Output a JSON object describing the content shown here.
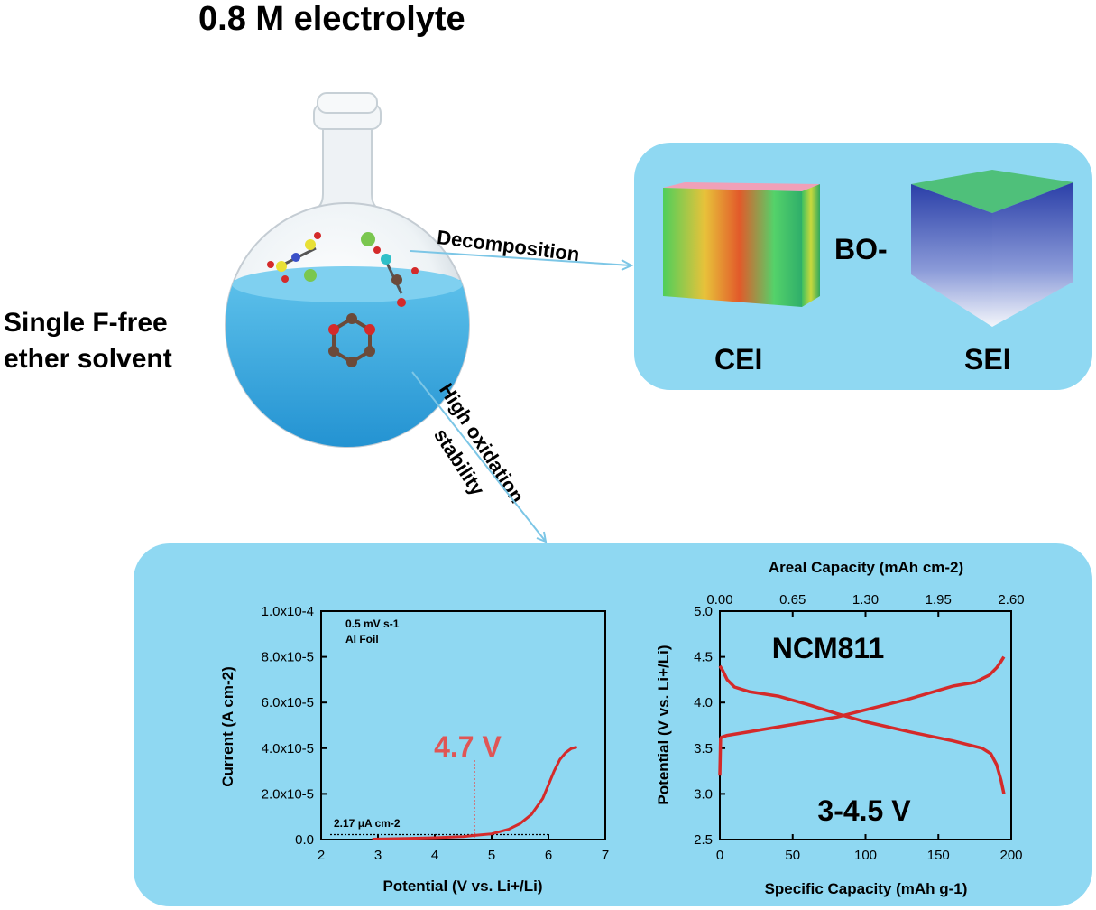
{
  "header": {
    "title": "0.8 M electrolyte"
  },
  "solvent_label": {
    "line1": "Single F-free",
    "line2": "ether solvent"
  },
  "arrows": {
    "decomposition": "Decomposition",
    "oxidation_line1": "High oxidation",
    "oxidation_line2": "stability"
  },
  "interphase": {
    "bo_label": "BO-",
    "cei_label": "CEI",
    "sei_label": "SEI"
  },
  "colors": {
    "panel": "#8fd8f2",
    "curve": "#d42a2a",
    "highlight": "#e05555",
    "arrow": "#7cc6e6"
  },
  "chart_data": [
    {
      "type": "line",
      "xlabel": "Potential (V vs. Li+/Li)",
      "ylabel": "Current (A cm-2)",
      "xlim": [
        2,
        7
      ],
      "ylim": [
        0,
        0.0001
      ],
      "xticks": [
        "2",
        "3",
        "4",
        "5",
        "6",
        "7"
      ],
      "yticks": [
        "0.0",
        "2.0x10-5",
        "4.0x10-5",
        "6.0x10-5",
        "8.0x10-5",
        "1.0x10-4"
      ],
      "annotations": {
        "scan_rate": "0.5 mV s-1",
        "substrate": "Al Foil",
        "onset_voltage": "4.7 V",
        "onset_x": 4.7,
        "baseline_current_label": "2.17 μA cm-2",
        "baseline_current": 2.17e-06
      },
      "series": [
        {
          "x": [
            2.9,
            3.5,
            4.0,
            4.5,
            4.7,
            5.0,
            5.3,
            5.5,
            5.7,
            5.9,
            6.0,
            6.1,
            6.2,
            6.3,
            6.4,
            6.5
          ],
          "y": [
            2e-07,
            5e-07,
            8e-07,
            1.3e-06,
            1.8e-06,
            2.5e-06,
            4.5e-06,
            7e-06,
            1.1e-05,
            1.8e-05,
            2.4e-05,
            3e-05,
            3.5e-05,
            3.8e-05,
            3.98e-05,
            4.05e-05
          ]
        }
      ]
    },
    {
      "type": "line",
      "title": "NCM811",
      "voltage_window": "3-4.5 V",
      "xlabel": "Specific Capacity (mAh g-1)",
      "ylabel": "Potential (V vs. Li+/Li)",
      "x2label": "Areal Capacity (mAh cm-2)",
      "xlim": [
        0,
        200
      ],
      "ylim": [
        2.5,
        5.0
      ],
      "xticks": [
        "0",
        "50",
        "100",
        "150",
        "200"
      ],
      "x2ticks": [
        "0.00",
        "0.65",
        "1.30",
        "1.95",
        "2.60"
      ],
      "yticks": [
        "2.5",
        "3.0",
        "3.5",
        "4.0",
        "4.5",
        "5.0"
      ],
      "series": [
        {
          "x": [
            0,
            0.5,
            1,
            5,
            20,
            50,
            80,
            100,
            130,
            160,
            175,
            185,
            190,
            193,
            195
          ],
          "y": [
            3.2,
            3.6,
            3.62,
            3.64,
            3.68,
            3.76,
            3.84,
            3.92,
            4.04,
            4.18,
            4.22,
            4.3,
            4.38,
            4.45,
            4.5
          ]
        },
        {
          "x": [
            0,
            2,
            5,
            10,
            20,
            40,
            60,
            80,
            100,
            130,
            160,
            180,
            186,
            190,
            193,
            195
          ],
          "y": [
            4.4,
            4.35,
            4.25,
            4.17,
            4.12,
            4.07,
            3.98,
            3.88,
            3.79,
            3.68,
            3.58,
            3.5,
            3.44,
            3.32,
            3.15,
            3.0
          ]
        }
      ]
    }
  ]
}
